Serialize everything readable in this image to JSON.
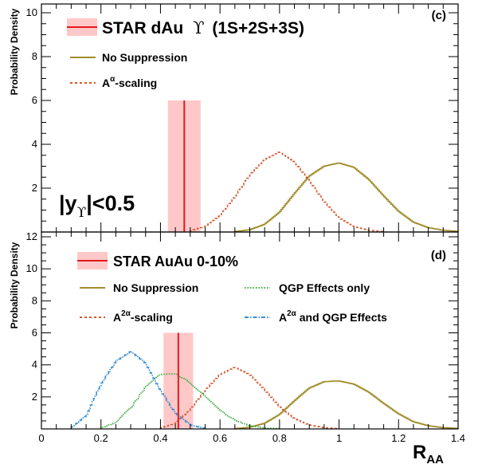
{
  "chart_data": [
    {
      "panel_label": "(c)",
      "type": "line",
      "ylabel": "Probability Density",
      "xlim": [
        0,
        1.4
      ],
      "ylim": [
        0,
        10.4
      ],
      "yticks": [
        2,
        4,
        6,
        8,
        10
      ],
      "grid": false,
      "legend": {
        "position": "top-left",
        "entries": [
          {
            "label": "STAR dAu",
            "label_symbol": "ϒ",
            "label_suffix": "(1S+2S+3S)",
            "color": "#e31a1c",
            "style": "band"
          },
          {
            "label": "No Suppression",
            "color": "#a08c2a",
            "style": "solid"
          },
          {
            "label": "A",
            "label_sup": "α",
            "label_suffix": "-scaling",
            "color": "#d2572d",
            "style": "dashed"
          }
        ]
      },
      "annotation": {
        "text": "|y",
        "sub": "ϒ",
        "suffix": "|<0.5"
      },
      "measurement": {
        "value": 0.48,
        "band": [
          0.425,
          0.535
        ],
        "band_color": "#ffc8c8",
        "line_color": "#e31a1c",
        "height": 6.0
      },
      "series": [
        {
          "name": "No Suppression",
          "color": "#a08c2a",
          "dash": "",
          "x": [
            0.65,
            0.7,
            0.75,
            0.8,
            0.85,
            0.9,
            0.95,
            1.0,
            1.05,
            1.1,
            1.15,
            1.2,
            1.25,
            1.3,
            1.35,
            1.4
          ],
          "y": [
            0.02,
            0.1,
            0.35,
            0.9,
            1.75,
            2.55,
            3.0,
            3.15,
            2.95,
            2.4,
            1.65,
            0.95,
            0.45,
            0.2,
            0.08,
            0.03
          ]
        },
        {
          "name": "A^α-scaling",
          "color": "#d2572d",
          "dash": "3,3",
          "x": [
            0.5,
            0.55,
            0.6,
            0.65,
            0.7,
            0.75,
            0.8,
            0.85,
            0.9,
            0.95,
            1.0,
            1.05,
            1.1,
            1.15
          ],
          "y": [
            0.05,
            0.25,
            0.75,
            1.6,
            2.6,
            3.3,
            3.65,
            3.2,
            2.35,
            1.4,
            0.65,
            0.25,
            0.08,
            0.02
          ]
        }
      ]
    },
    {
      "panel_label": "(d)",
      "type": "line",
      "xlabel": "R",
      "xlabel_sub": "AA",
      "ylabel": "Probability Density",
      "xlim": [
        0,
        1.4
      ],
      "ylim": [
        0,
        12.3
      ],
      "xticks": [
        "0",
        "0.2",
        "0.4",
        "0.6",
        "0.8",
        "1",
        "1.2",
        "1.4"
      ],
      "yticks": [
        2,
        4,
        6,
        8,
        10,
        12
      ],
      "grid": false,
      "legend": {
        "position": "top-left",
        "entries": [
          {
            "label": "STAR AuAu 0-10%",
            "color": "#e31a1c",
            "style": "band"
          },
          {
            "label": "No Suppression",
            "color": "#a08c2a",
            "style": "solid"
          },
          {
            "label": "QGP Effects only",
            "color": "#3aaa3a",
            "style": "dotted"
          },
          {
            "label": "A",
            "label_sup": "2α",
            "label_suffix": "-scaling",
            "color": "#d2572d",
            "style": "dashed"
          },
          {
            "label": "A",
            "label_sup": "2α",
            "label_suffix": " and QGP Effects",
            "color": "#3a8fd0",
            "style": "dashdot"
          }
        ]
      },
      "measurement": {
        "value": 0.46,
        "band": [
          0.41,
          0.51
        ],
        "band_color": "#ffc8c8",
        "line_color": "#e31a1c",
        "height": 6.0
      },
      "series": [
        {
          "name": "No Suppression",
          "color": "#a08c2a",
          "dash": "",
          "x": [
            0.65,
            0.7,
            0.75,
            0.8,
            0.85,
            0.9,
            0.95,
            1.0,
            1.05,
            1.1,
            1.15,
            1.2,
            1.25,
            1.3,
            1.35,
            1.4
          ],
          "y": [
            0.02,
            0.1,
            0.35,
            0.9,
            1.75,
            2.55,
            2.95,
            3.0,
            2.8,
            2.3,
            1.6,
            0.95,
            0.45,
            0.2,
            0.08,
            0.03
          ]
        },
        {
          "name": "A^2α-scaling",
          "color": "#d2572d",
          "dash": "3,3",
          "x": [
            0.4,
            0.45,
            0.5,
            0.55,
            0.6,
            0.65,
            0.7,
            0.75,
            0.8,
            0.85,
            0.9,
            0.95,
            1.0
          ],
          "y": [
            0.05,
            0.35,
            1.2,
            2.4,
            3.4,
            3.85,
            3.4,
            2.45,
            1.4,
            0.65,
            0.25,
            0.08,
            0.02
          ]
        },
        {
          "name": "QGP Effects only",
          "color": "#3aaa3a",
          "dash": "1.5,2",
          "x": [
            0.2,
            0.25,
            0.3,
            0.35,
            0.4,
            0.45,
            0.5,
            0.55,
            0.6,
            0.65,
            0.7,
            0.75,
            0.8
          ],
          "y": [
            0.05,
            0.4,
            1.3,
            2.6,
            3.4,
            3.45,
            2.9,
            2.0,
            1.15,
            0.55,
            0.2,
            0.06,
            0.02
          ]
        },
        {
          "name": "A^2α and QGP Effects",
          "color": "#3a8fd0",
          "dash": "5,2,1.5,2",
          "x": [
            0.1,
            0.15,
            0.2,
            0.25,
            0.3,
            0.35,
            0.4,
            0.45,
            0.5,
            0.55
          ],
          "y": [
            0.1,
            0.8,
            2.8,
            4.2,
            4.85,
            4.1,
            2.4,
            1.0,
            0.25,
            0.03
          ]
        }
      ]
    }
  ]
}
